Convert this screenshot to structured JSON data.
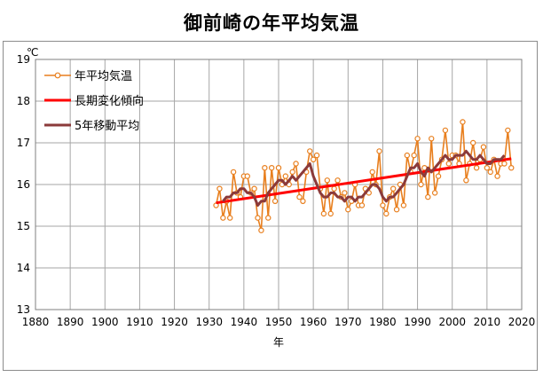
{
  "chart_data": {
    "type": "line",
    "title": "御前崎の年平均気温",
    "xlabel": "年",
    "ylabel": "",
    "y_unit": "℃",
    "xlim": [
      1880,
      2020
    ],
    "ylim": [
      13,
      19
    ],
    "x_ticks": [
      1880,
      1890,
      1900,
      1910,
      1920,
      1930,
      1940,
      1950,
      1960,
      1970,
      1980,
      1990,
      2000,
      2010,
      2020
    ],
    "y_ticks": [
      13,
      14,
      15,
      16,
      17,
      18,
      19
    ],
    "grid": true,
    "legend_position": "top-left",
    "colors": {
      "annual": "#e87f1e",
      "trend": "#ff0000",
      "moving_avg": "#8b3a3a",
      "grid": "#a6a6a6"
    },
    "x": [
      1932,
      1933,
      1934,
      1935,
      1936,
      1937,
      1938,
      1939,
      1940,
      1941,
      1942,
      1943,
      1944,
      1945,
      1946,
      1947,
      1948,
      1949,
      1950,
      1951,
      1952,
      1953,
      1954,
      1955,
      1956,
      1957,
      1958,
      1959,
      1960,
      1961,
      1962,
      1963,
      1964,
      1965,
      1966,
      1967,
      1968,
      1969,
      1970,
      1971,
      1972,
      1973,
      1974,
      1975,
      1976,
      1977,
      1978,
      1979,
      1980,
      1981,
      1982,
      1983,
      1984,
      1985,
      1986,
      1987,
      1988,
      1989,
      1990,
      1991,
      1992,
      1993,
      1994,
      1995,
      1996,
      1997,
      1998,
      1999,
      2000,
      2001,
      2002,
      2003,
      2004,
      2005,
      2006,
      2007,
      2008,
      2009,
      2010,
      2011,
      2012,
      2013,
      2014,
      2015,
      2016,
      2017
    ],
    "series": [
      {
        "name": "年平均気温",
        "style": "line-marker",
        "values": [
          15.5,
          15.9,
          15.2,
          15.6,
          15.2,
          16.3,
          15.8,
          15.7,
          16.2,
          16.2,
          15.8,
          15.9,
          15.2,
          14.9,
          16.4,
          15.2,
          16.4,
          15.6,
          16.4,
          16.0,
          16.2,
          16.0,
          16.3,
          16.5,
          15.7,
          15.6,
          16.3,
          16.8,
          16.6,
          16.7,
          15.9,
          15.3,
          16.1,
          15.3,
          15.9,
          16.1,
          15.7,
          15.8,
          15.4,
          15.6,
          16.0,
          15.5,
          15.5,
          15.9,
          15.8,
          16.3,
          16.0,
          16.8,
          15.5,
          15.3,
          15.7,
          15.9,
          15.4,
          16.0,
          15.5,
          16.7,
          16.3,
          16.7,
          17.1,
          16.0,
          16.4,
          15.7,
          17.1,
          15.8,
          16.2,
          16.6,
          17.3,
          16.5,
          16.7,
          16.7,
          16.5,
          17.5,
          16.1,
          16.5,
          17.0,
          16.4,
          16.6,
          16.9,
          16.4,
          16.3,
          16.6,
          16.2,
          16.5,
          16.5,
          17.3,
          16.4
        ]
      },
      {
        "name": "長期変化傾向",
        "style": "line",
        "x": [
          1932,
          2017
        ],
        "values": [
          15.56,
          16.62
        ]
      },
      {
        "name": "5年移動平均",
        "style": "line",
        "x": [
          1934,
          1935,
          1936,
          1937,
          1938,
          1939,
          1940,
          1941,
          1942,
          1943,
          1944,
          1945,
          1946,
          1947,
          1948,
          1949,
          1950,
          1951,
          1952,
          1953,
          1954,
          1955,
          1956,
          1957,
          1958,
          1959,
          1960,
          1961,
          1962,
          1963,
          1964,
          1965,
          1966,
          1967,
          1968,
          1969,
          1970,
          1971,
          1972,
          1973,
          1974,
          1975,
          1976,
          1977,
          1978,
          1979,
          1980,
          1981,
          1982,
          1983,
          1984,
          1985,
          1986,
          1987,
          1988,
          1989,
          1990,
          1991,
          1992,
          1993,
          1994,
          1995,
          1996,
          1997,
          1998,
          1999,
          2000,
          2001,
          2002,
          2003,
          2004,
          2005,
          2006,
          2007,
          2008,
          2009,
          2010,
          2011,
          2012,
          2013,
          2014,
          2015
        ],
        "values": [
          15.6,
          15.7,
          15.7,
          15.8,
          15.8,
          15.9,
          15.9,
          15.8,
          15.8,
          15.7,
          15.5,
          15.6,
          15.6,
          15.8,
          15.9,
          16.0,
          16.1,
          16.1,
          16.0,
          16.1,
          16.2,
          16.1,
          16.2,
          16.3,
          16.4,
          16.5,
          16.2,
          16.0,
          15.8,
          15.7,
          15.7,
          15.8,
          15.8,
          15.7,
          15.7,
          15.6,
          15.7,
          15.7,
          15.6,
          15.7,
          15.7,
          15.8,
          15.9,
          16.0,
          16.0,
          15.9,
          15.7,
          15.6,
          15.7,
          15.7,
          15.8,
          15.9,
          16.0,
          16.2,
          16.4,
          16.4,
          16.5,
          16.3,
          16.2,
          16.4,
          16.3,
          16.4,
          16.5,
          16.6,
          16.7,
          16.6,
          16.6,
          16.7,
          16.7,
          16.7,
          16.8,
          16.7,
          16.6,
          16.6,
          16.7,
          16.6,
          16.5,
          16.5,
          16.6,
          16.6,
          16.6,
          16.7
        ]
      }
    ]
  }
}
